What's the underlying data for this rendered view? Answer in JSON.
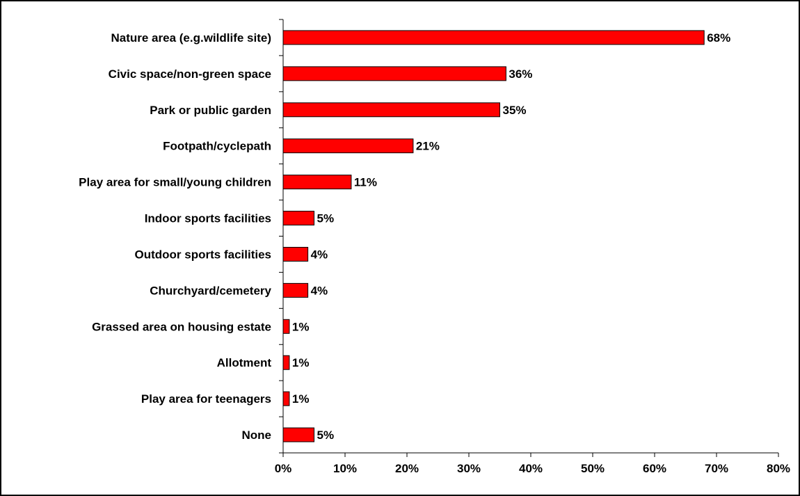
{
  "chart_data": {
    "type": "bar",
    "orientation": "horizontal",
    "categories": [
      "Nature area (e.g.wildlife site)",
      "Civic space/non-green space",
      "Park or public garden",
      "Footpath/cyclepath",
      "Play area for small/young children",
      "Indoor sports facilities",
      "Outdoor sports facilities",
      "Churchyard/cemetery",
      "Grassed area on housing estate",
      "Allotment",
      "Play area for teenagers",
      "None"
    ],
    "values": [
      68,
      36,
      35,
      21,
      11,
      5,
      4,
      4,
      1,
      1,
      1,
      5
    ],
    "value_labels": [
      "68%",
      "36%",
      "35%",
      "21%",
      "11%",
      "5%",
      "4%",
      "4%",
      "1%",
      "1%",
      "1%",
      "5%"
    ],
    "xlim": [
      0,
      80
    ],
    "xticks": [
      0,
      10,
      20,
      30,
      40,
      50,
      60,
      70,
      80
    ],
    "xtick_labels": [
      "0%",
      "10%",
      "20%",
      "30%",
      "40%",
      "50%",
      "60%",
      "70%",
      "80%"
    ],
    "title": "",
    "xlabel": "",
    "ylabel": "",
    "grid": false,
    "legend": "none",
    "colors": {
      "bar_fill": "#ff0000",
      "bar_stroke": "#000000"
    }
  }
}
